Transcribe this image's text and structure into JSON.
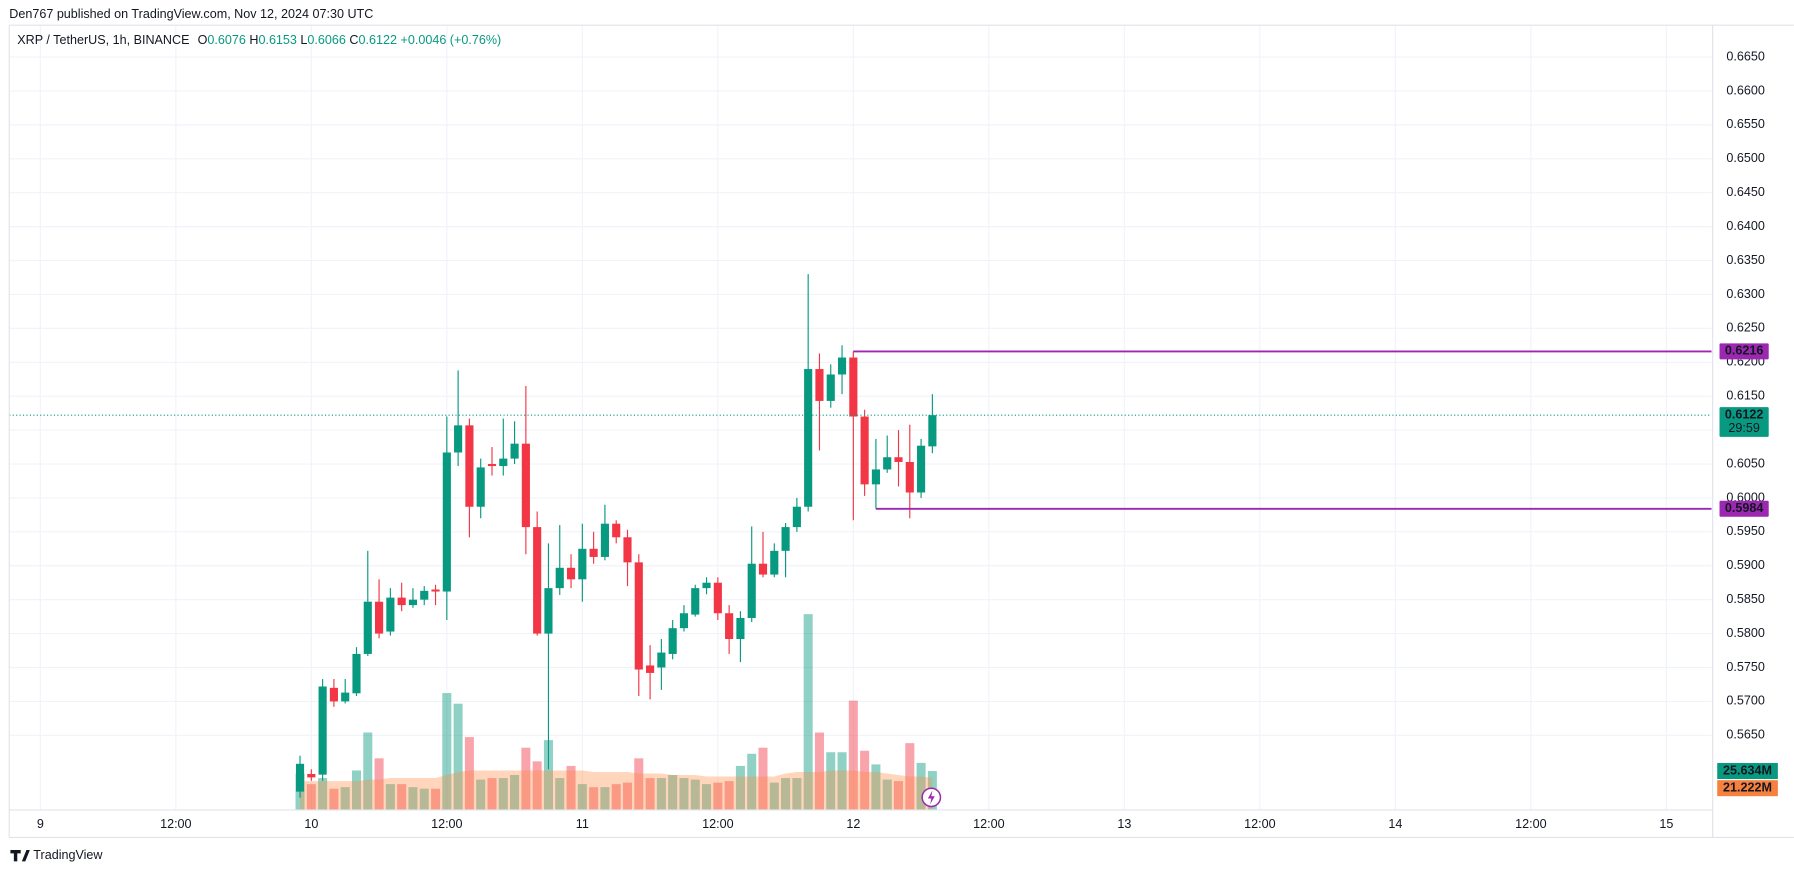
{
  "header": "Den767 published on TradingView.com, Nov 12, 2024 07:30 UTC",
  "footer": "TradingView",
  "chart_data": {
    "type": "candlestick",
    "symbol": "XRP / TetherUS, 1h, BINANCE",
    "legend": [
      {
        "key": "O",
        "value": 0.6076
      },
      {
        "key": "H",
        "value": 0.6153
      },
      {
        "key": "L",
        "value": 0.6066
      },
      {
        "key": "C",
        "value": 0.6122
      }
    ],
    "change": "+0.0046 (+0.76%)",
    "countdown": "29:59",
    "up_color": "#089981",
    "down_color": "#f23645",
    "volume_up_color": "rgba(8,153,129,0.45)",
    "volume_down_color": "rgba(242,54,69,0.45)",
    "volume_ma_color": "rgba(255,138,61,0.35)",
    "volume_ma_label_color": "#f7803c",
    "grid": true,
    "x": [
      "2024-11-09 23:00",
      "2024-11-10 00:00",
      "2024-11-10 01:00",
      "2024-11-10 02:00",
      "2024-11-10 03:00",
      "2024-11-10 04:00",
      "2024-11-10 05:00",
      "2024-11-10 06:00",
      "2024-11-10 07:00",
      "2024-11-10 08:00",
      "2024-11-10 09:00",
      "2024-11-10 10:00",
      "2024-11-10 11:00",
      "2024-11-10 12:00",
      "2024-11-10 13:00",
      "2024-11-10 14:00",
      "2024-11-10 15:00",
      "2024-11-10 16:00",
      "2024-11-10 17:00",
      "2024-11-10 18:00",
      "2024-11-10 19:00",
      "2024-11-10 20:00",
      "2024-11-10 21:00",
      "2024-11-10 22:00",
      "2024-11-10 23:00",
      "2024-11-11 00:00",
      "2024-11-11 01:00",
      "2024-11-11 02:00",
      "2024-11-11 03:00",
      "2024-11-11 04:00",
      "2024-11-11 05:00",
      "2024-11-11 06:00",
      "2024-11-11 07:00",
      "2024-11-11 08:00",
      "2024-11-11 09:00",
      "2024-11-11 10:00",
      "2024-11-11 11:00",
      "2024-11-11 12:00",
      "2024-11-11 13:00",
      "2024-11-11 14:00",
      "2024-11-11 15:00",
      "2024-11-11 16:00",
      "2024-11-11 17:00",
      "2024-11-11 18:00",
      "2024-11-11 19:00",
      "2024-11-11 20:00",
      "2024-11-11 21:00",
      "2024-11-11 22:00",
      "2024-11-11 23:00",
      "2024-11-12 00:00",
      "2024-11-12 01:00",
      "2024-11-12 02:00",
      "2024-11-12 03:00",
      "2024-11-12 04:00",
      "2024-11-12 05:00",
      "2024-11-12 06:00",
      "2024-11-12 07:00"
    ],
    "open": [
      0.5567,
      0.5593,
      0.5592,
      0.572,
      0.57,
      0.5712,
      0.577,
      0.5847,
      0.5803,
      0.5853,
      0.5842,
      0.585,
      0.5865,
      0.5862,
      0.6067,
      0.6107,
      0.5987,
      0.605,
      0.6047,
      0.6058,
      0.608,
      0.5957,
      0.58,
      0.5867,
      0.5897,
      0.588,
      0.5925,
      0.5913,
      0.5962,
      0.5942,
      0.5905,
      0.5753,
      0.575,
      0.577,
      0.5808,
      0.5828,
      0.5867,
      0.5875,
      0.583,
      0.5792,
      0.5823,
      0.5903,
      0.5887,
      0.5922,
      0.5957,
      0.5987,
      0.619,
      0.6143,
      0.6182,
      0.6207,
      0.612,
      0.602,
      0.6042,
      0.606,
      0.6053,
      0.6008,
      0.6076
    ],
    "high": [
      0.562,
      0.56,
      0.5733,
      0.5733,
      0.5733,
      0.578,
      0.5922,
      0.588,
      0.5867,
      0.5875,
      0.5867,
      0.587,
      0.5872,
      0.612,
      0.6188,
      0.6117,
      0.6058,
      0.6075,
      0.6117,
      0.6113,
      0.6165,
      0.598,
      0.5933,
      0.596,
      0.5917,
      0.5962,
      0.595,
      0.599,
      0.5967,
      0.5953,
      0.5917,
      0.5783,
      0.5792,
      0.582,
      0.5842,
      0.5872,
      0.5883,
      0.5883,
      0.5842,
      0.5833,
      0.5958,
      0.595,
      0.5933,
      0.5963,
      0.6,
      0.633,
      0.6213,
      0.6197,
      0.6225,
      0.6216,
      0.613,
      0.6087,
      0.6092,
      0.61,
      0.6108,
      0.6087,
      0.6153
    ],
    "low": [
      0.5558,
      0.5583,
      0.5583,
      0.5692,
      0.5697,
      0.5708,
      0.5767,
      0.5793,
      0.5797,
      0.5833,
      0.5838,
      0.5842,
      0.5842,
      0.582,
      0.6047,
      0.5942,
      0.597,
      0.6033,
      0.6033,
      0.605,
      0.5917,
      0.5797,
      0.56,
      0.5857,
      0.5867,
      0.5847,
      0.5903,
      0.5908,
      0.5933,
      0.587,
      0.5708,
      0.5703,
      0.5717,
      0.5762,
      0.5803,
      0.5825,
      0.5858,
      0.582,
      0.577,
      0.5758,
      0.5817,
      0.5883,
      0.5883,
      0.5883,
      0.595,
      0.598,
      0.607,
      0.6133,
      0.6153,
      0.5967,
      0.6003,
      0.5984,
      0.6037,
      0.6017,
      0.597,
      0.6,
      0.6066
    ],
    "close": [
      0.5608,
      0.5588,
      0.5722,
      0.57,
      0.5713,
      0.577,
      0.5847,
      0.58,
      0.5853,
      0.5842,
      0.585,
      0.5863,
      0.5862,
      0.6067,
      0.6107,
      0.5987,
      0.6045,
      0.6047,
      0.6058,
      0.608,
      0.5957,
      0.58,
      0.5867,
      0.5897,
      0.588,
      0.5925,
      0.5913,
      0.5962,
      0.5942,
      0.5905,
      0.5747,
      0.5742,
      0.5772,
      0.5808,
      0.583,
      0.5867,
      0.5875,
      0.583,
      0.5792,
      0.5823,
      0.5903,
      0.5887,
      0.5922,
      0.5957,
      0.5987,
      0.619,
      0.6143,
      0.6182,
      0.6207,
      0.612,
      0.602,
      0.6042,
      0.606,
      0.6053,
      0.6008,
      0.6077,
      0.6122
    ],
    "volume": [
      24,
      17,
      21,
      14,
      15,
      26,
      51,
      34,
      17,
      17,
      15,
      14,
      14,
      77,
      70,
      48,
      20,
      21,
      21,
      23,
      41,
      32,
      46,
      21,
      29,
      17,
      15,
      15,
      17,
      18,
      34,
      21,
      21,
      23,
      21,
      20,
      17,
      18,
      19,
      29,
      37,
      41,
      18,
      21,
      21,
      129,
      51,
      38,
      38,
      72,
      39,
      30,
      20,
      19,
      44,
      31,
      25.634
    ],
    "volume_last_label": "25.634M",
    "volume_ma": [
      19,
      19,
      19,
      19,
      19,
      19,
      20,
      20,
      21,
      21,
      21,
      21,
      21,
      23,
      25,
      26,
      26,
      26,
      26,
      26,
      26,
      26,
      26,
      26,
      26,
      26,
      25,
      25,
      25,
      25,
      24,
      24,
      24,
      23,
      23,
      23,
      22,
      22,
      22,
      22,
      22,
      22,
      22,
      24,
      25,
      25,
      25,
      26,
      26,
      26,
      25,
      25,
      24,
      23,
      22,
      22,
      21.222
    ],
    "volume_ma_last_label": "21.222M",
    "volume_ylim": [
      0,
      517
    ],
    "xlim": [
      "2024-11-08 21:15",
      "2024-11-15 04:00"
    ],
    "xticks": [
      {
        "value": "2024-11-09 00:00",
        "label": "9"
      },
      {
        "value": "2024-11-09 12:00",
        "label": "12:00"
      },
      {
        "value": "2024-11-10 00:00",
        "label": "10"
      },
      {
        "value": "2024-11-10 12:00",
        "label": "12:00"
      },
      {
        "value": "2024-11-11 00:00",
        "label": "11"
      },
      {
        "value": "2024-11-11 12:00",
        "label": "12:00"
      },
      {
        "value": "2024-11-12 00:00",
        "label": "12"
      },
      {
        "value": "2024-11-12 12:00",
        "label": "12:00"
      },
      {
        "value": "2024-11-13 00:00",
        "label": "13"
      },
      {
        "value": "2024-11-13 12:00",
        "label": "12:00"
      },
      {
        "value": "2024-11-14 00:00",
        "label": "14"
      },
      {
        "value": "2024-11-14 12:00",
        "label": "12:00"
      },
      {
        "value": "2024-11-15 00:00",
        "label": "15"
      }
    ],
    "ylim": [
      0.554,
      0.6697
    ],
    "yticks": [
      {
        "value": 0.565,
        "label": "0.5650"
      },
      {
        "value": 0.57,
        "label": "0.5700"
      },
      {
        "value": 0.575,
        "label": "0.5750"
      },
      {
        "value": 0.58,
        "label": "0.5800"
      },
      {
        "value": 0.585,
        "label": "0.5850"
      },
      {
        "value": 0.59,
        "label": "0.5900"
      },
      {
        "value": 0.595,
        "label": "0.5950"
      },
      {
        "value": 0.6,
        "label": "0.6000"
      },
      {
        "value": 0.605,
        "label": "0.6050"
      },
      {
        "value": 0.61,
        "label": "0.6100"
      },
      {
        "value": 0.615,
        "label": "0.6150"
      },
      {
        "value": 0.62,
        "label": "0.6200"
      },
      {
        "value": 0.625,
        "label": "0.6250"
      },
      {
        "value": 0.63,
        "label": "0.6300"
      },
      {
        "value": 0.635,
        "label": "0.6350"
      },
      {
        "value": 0.64,
        "label": "0.6400"
      },
      {
        "value": 0.645,
        "label": "0.6450"
      },
      {
        "value": 0.65,
        "label": "0.6500"
      },
      {
        "value": 0.655,
        "label": "0.6550"
      },
      {
        "value": 0.66,
        "label": "0.6600"
      },
      {
        "value": 0.665,
        "label": "0.6650"
      }
    ],
    "lines": [
      {
        "value": 0.6216,
        "start": "2024-11-12 00:00",
        "color": "#9c27b0"
      },
      {
        "value": 0.5984,
        "start": "2024-11-12 02:00",
        "color": "#9c27b0"
      }
    ]
  }
}
